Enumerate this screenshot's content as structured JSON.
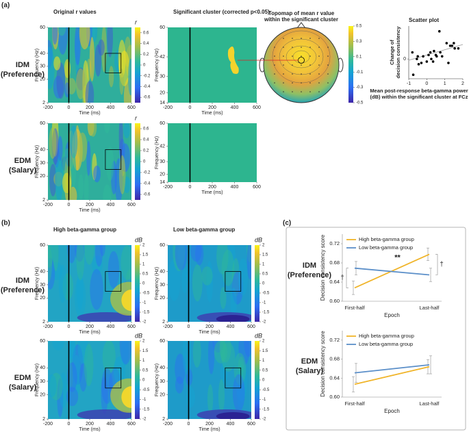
{
  "panel_labels": [
    "(a)",
    "(b)",
    "(c)"
  ],
  "row_labels": [
    [
      "IDM",
      "(Preference)"
    ],
    [
      "EDM",
      "(Salary)"
    ],
    [
      "IDM",
      "(Preference)"
    ],
    [
      "EDM",
      "(Salary)"
    ],
    [
      "IDM",
      "(Preference)"
    ],
    [
      "EDM",
      "(Salary)"
    ]
  ],
  "chart_data": [
    {
      "type": "heatmap",
      "style": "r",
      "title": "Original r values",
      "xlabel": "Time (ms)",
      "ylabel": "Frequency (Hz)",
      "xlim": [
        -200,
        600
      ],
      "xticks": [
        -200,
        0,
        200,
        400,
        600
      ],
      "ylim": [
        2,
        60
      ],
      "yticks": [
        2,
        20,
        30,
        40,
        60
      ],
      "roi": {
        "x": [
          350,
          500
        ],
        "y": [
          25,
          40
        ]
      },
      "colorbar": {
        "label": "r",
        "lim": [
          -0.7,
          0.7
        ],
        "ticks": [
          0.6,
          0.4,
          0.2,
          0,
          -0.2,
          -0.4,
          -0.6
        ]
      }
    },
    {
      "type": "heatmap",
      "style": "cluster",
      "title": "Significant cluster (corrected p<0.05)",
      "xlabel": "Time (ms)",
      "ylabel": "Frequency (Hz)",
      "xlim": [
        -200,
        600
      ],
      "xticks": [
        -200,
        0,
        200,
        400,
        600
      ],
      "ylim": [
        14,
        60
      ],
      "yticks": [
        14,
        20,
        30,
        42,
        60
      ]
    },
    {
      "type": "topomap",
      "title": [
        "Topomap of mean r value",
        "within the significant cluster"
      ],
      "colorbar": {
        "lim": [
          -0.5,
          0.5
        ],
        "ticks": [
          0.5,
          0.3,
          0.1,
          -0.1,
          -0.3,
          -0.5
        ]
      }
    },
    {
      "type": "scatter",
      "title": "Scatter plot",
      "xlabel": [
        "Mean post-response beta-gamma power",
        "(dB) within the significant cluster at FCz"
      ],
      "ylabel": [
        "Change of",
        "decision consistency"
      ],
      "color": "#000000",
      "xlim": [
        -1,
        2
      ],
      "xticks": [
        -1,
        0,
        1,
        2
      ],
      "ylim": [
        -0.15,
        0.25
      ],
      "yticks": [
        0
      ],
      "x": [
        -0.8,
        -0.75,
        -0.55,
        -0.5,
        -0.45,
        -0.3,
        -0.2,
        0,
        0.1,
        0.2,
        0.25,
        0.35,
        0.4,
        0.5,
        0.55,
        0.7,
        0.75,
        0.85,
        1.1,
        1.2,
        1.3,
        1.4,
        1.5,
        1.55,
        1.75
      ],
      "values": [
        0.05,
        -0.12,
        0,
        0.02,
        -0.04,
        -0.03,
        0.02,
        -0.02,
        0.03,
        0.05,
        0,
        -0.02,
        0.06,
        0.03,
        0.02,
        0.21,
        0.05,
        0.02,
        0.12,
        -0.03,
        0.1,
        0.1,
        0.12,
        0.08,
        0.08
      ],
      "trend": {
        "x": [
          -1,
          2
        ],
        "y": [
          -0.01,
          0.11
        ]
      }
    },
    {
      "type": "heatmap",
      "style": "r",
      "xlabel": "Time (ms)",
      "ylabel": "Frequency (Hz)",
      "xlim": [
        -200,
        600
      ],
      "xticks": [
        -200,
        0,
        200,
        400,
        600
      ],
      "ylim": [
        2,
        60
      ],
      "yticks": [
        2,
        20,
        30,
        40,
        60
      ],
      "roi": {
        "x": [
          350,
          500
        ],
        "y": [
          25,
          40
        ]
      },
      "colorbar": {
        "label": "r",
        "lim": [
          -0.7,
          0.7
        ],
        "ticks": [
          0.6,
          0.4,
          0.2,
          0,
          -0.2,
          -0.4,
          -0.6
        ]
      }
    },
    {
      "type": "heatmap",
      "style": "empty",
      "xlabel": "Time (ms)",
      "ylabel": "Frequency (Hz)",
      "xlim": [
        -200,
        600
      ],
      "xticks": [
        -200,
        0,
        200,
        400,
        600
      ],
      "ylim": [
        14,
        60
      ],
      "yticks": [
        14,
        20,
        30,
        42,
        60
      ]
    },
    {
      "type": "heatmap",
      "style": "db-high",
      "title": "High beta-gamma group",
      "xlabel": "Time (ms)",
      "ylabel": "Frequency (Hz)",
      "xlim": [
        -200,
        600
      ],
      "xticks": [
        -200,
        0,
        200,
        400,
        600
      ],
      "ylim": [
        2,
        60
      ],
      "yticks": [
        2,
        20,
        30,
        40,
        60
      ],
      "roi": {
        "x": [
          350,
          500
        ],
        "y": [
          25,
          40
        ]
      },
      "colorbar": {
        "label": "dB",
        "lim": [
          -2,
          2
        ],
        "ticks": [
          2,
          1.5,
          1,
          0.5,
          0,
          -0.5,
          -1,
          -1.5,
          -2
        ]
      }
    },
    {
      "type": "heatmap",
      "style": "db-low",
      "title": "Low beta-gamma group",
      "xlabel": "Time (ms)",
      "ylabel": "Frequency (Hz)",
      "xlim": [
        -200,
        600
      ],
      "xticks": [
        -200,
        0,
        200,
        400,
        600
      ],
      "ylim": [
        2,
        60
      ],
      "yticks": [
        2,
        20,
        30,
        40,
        60
      ],
      "roi": {
        "x": [
          350,
          500
        ],
        "y": [
          25,
          40
        ]
      },
      "colorbar": {
        "label": "dB",
        "lim": [
          -2,
          2
        ],
        "ticks": [
          2,
          1.5,
          1,
          0.5,
          0,
          -0.5,
          -1,
          -1.5,
          -2
        ]
      }
    },
    {
      "type": "heatmap",
      "style": "db-high",
      "xlabel": "Time (ms)",
      "ylabel": "Frequency (Hz)",
      "xlim": [
        -200,
        600
      ],
      "xticks": [
        -200,
        0,
        200,
        400,
        600
      ],
      "ylim": [
        2,
        60
      ],
      "yticks": [
        2,
        20,
        30,
        40,
        60
      ],
      "roi": {
        "x": [
          350,
          500
        ],
        "y": [
          25,
          40
        ]
      },
      "colorbar": {
        "label": "dB",
        "lim": [
          -2,
          2
        ],
        "ticks": [
          2,
          1.5,
          1,
          0.5,
          0,
          -0.5,
          -1,
          -1.5,
          -2
        ]
      }
    },
    {
      "type": "heatmap",
      "style": "db-low",
      "xlabel": "Time (ms)",
      "ylabel": "Frequency (Hz)",
      "xlim": [
        -200,
        600
      ],
      "xticks": [
        -200,
        0,
        200,
        400,
        600
      ],
      "ylim": [
        2,
        60
      ],
      "yticks": [
        2,
        20,
        30,
        40,
        60
      ],
      "roi": {
        "x": [
          350,
          500
        ],
        "y": [
          25,
          40
        ]
      },
      "colorbar": {
        "label": "dB",
        "lim": [
          -2,
          2
        ],
        "ticks": [
          2,
          1.5,
          1,
          0.5,
          0,
          -0.5,
          -1,
          -1.5,
          -2
        ]
      }
    },
    {
      "type": "line",
      "xlabel": "Epoch",
      "ylabel": "Decision consistency score",
      "categories": [
        "First-half",
        "Last-half"
      ],
      "ylim": [
        0.6,
        0.74
      ],
      "yticks": [
        {
          "value": 0.6,
          "label": "0.60"
        },
        {
          "value": 0.64,
          "label": "0.64"
        },
        {
          "value": 0.68,
          "label": "0.68"
        },
        {
          "value": 0.72,
          "label": "0.72"
        }
      ],
      "legend": "upper left",
      "series": [
        {
          "name": "High beta-gamma group",
          "color": "#f0b429",
          "values": [
            0.628,
            0.698
          ],
          "errors": [
            0.014,
            0.013
          ]
        },
        {
          "name": "Low beta-gamma group",
          "color": "#5b8fc9",
          "values": [
            0.669,
            0.655
          ],
          "errors": [
            0.014,
            0.014
          ]
        }
      ],
      "annotations": [
        "**",
        "†",
        "†"
      ]
    },
    {
      "type": "line",
      "xlabel": "Epoch",
      "ylabel": "Decision consistency score",
      "categories": [
        "First-half",
        "Last-half"
      ],
      "ylim": [
        0.6,
        0.74
      ],
      "yticks": [
        {
          "value": 0.6,
          "label": "0.60"
        },
        {
          "value": 0.64,
          "label": "0.64"
        },
        {
          "value": 0.68,
          "label": "0.68"
        },
        {
          "value": 0.72,
          "label": "0.72"
        }
      ],
      "legend": "upper left",
      "series": [
        {
          "name": "High beta-gamma group",
          "color": "#f0b429",
          "values": [
            0.627,
            0.664
          ],
          "errors": [
            0.016,
            0.015
          ]
        },
        {
          "name": "Low beta-gamma group",
          "color": "#5b8fc9",
          "values": [
            0.651,
            0.668
          ],
          "errors": [
            0.02,
            0.019
          ]
        }
      ]
    }
  ]
}
